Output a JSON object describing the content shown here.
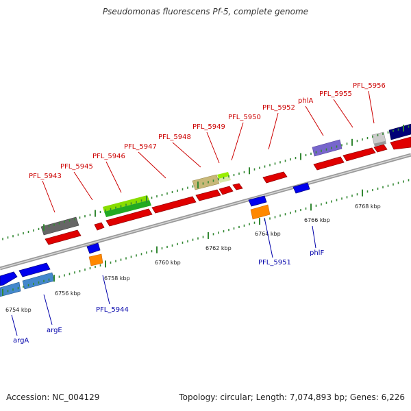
{
  "title": "Pseudomonas fluorescens Pf-5, complete genome",
  "footer": {
    "accession": "Accession: NC_004129",
    "summary": "Topology: circular; Length: 7,074,893 bp; Genes: 6,226"
  },
  "colors": {
    "forward_gene": "#ee0000",
    "reverse_gene": "#0000ee",
    "forward_label": "#cc0000",
    "reverse_label": "#0000aa",
    "backbone": "#999999",
    "tick": "#338833"
  },
  "scale_labels": [
    "6754 kbp",
    "6756 kbp",
    "6758 kbp",
    "6760 kbp",
    "6762 kbp",
    "6764 kbp",
    "6766 kbp",
    "6768 kbp"
  ],
  "forward_labels": [
    "PFL_5943",
    "PFL_5945",
    "PFL_5946",
    "PFL_5947",
    "PFL_5948",
    "PFL_5949",
    "PFL_5950",
    "PFL_5952",
    "phlA",
    "PFL_5955",
    "PFL_5956"
  ],
  "reverse_labels": [
    "argA",
    "argE",
    "PFL_5944",
    "PFL_5951",
    "phlF"
  ]
}
